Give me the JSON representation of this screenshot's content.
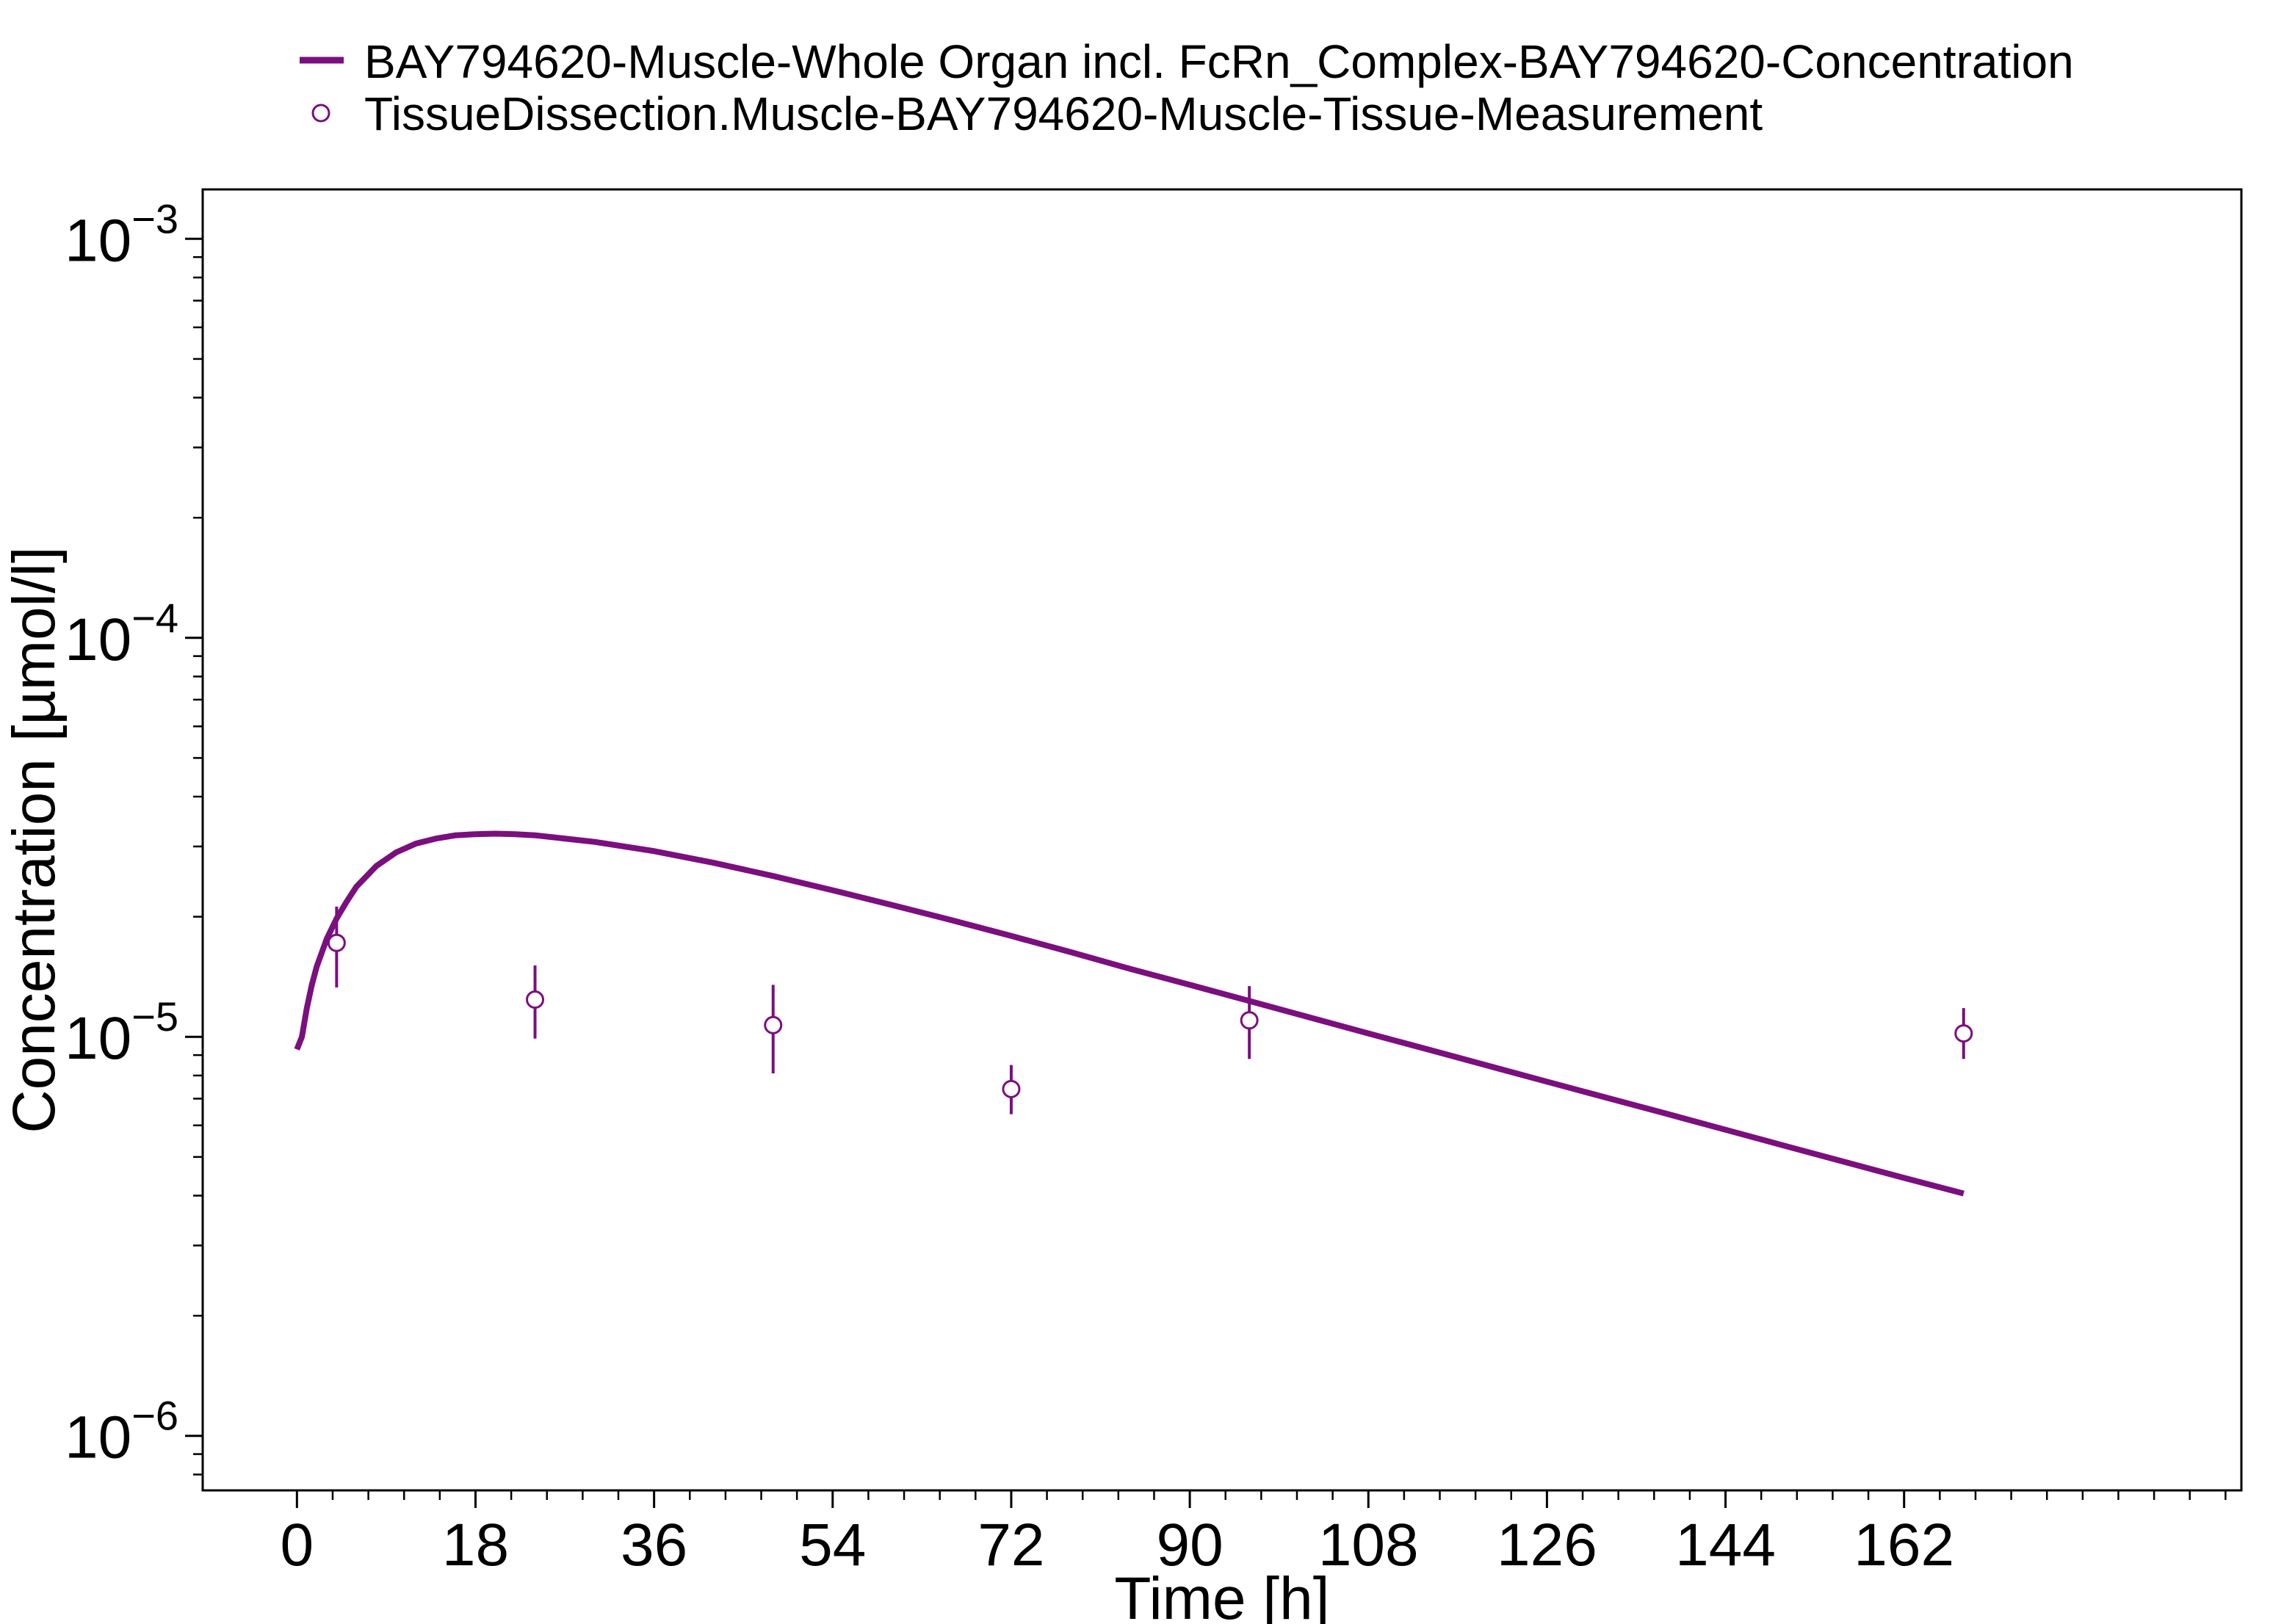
{
  "chart_data": {
    "type": "line",
    "title": "",
    "xlabel": "Time [h]",
    "ylabel": "Concentration [µmol/l]",
    "xlim": [
      -9.5,
      196
    ],
    "ylim": [
      7.3e-07,
      0.00133
    ],
    "yscale": "log",
    "grid": false,
    "legend_position": "top",
    "x_ticks": [
      0,
      18,
      36,
      54,
      72,
      90,
      108,
      126,
      144,
      162
    ],
    "x_tick_labels": [
      "0",
      "18",
      "36",
      "54",
      "72",
      "90",
      "108",
      "126",
      "144",
      "162"
    ],
    "y_ticks": [
      {
        "value": 1e-06,
        "base": "10",
        "exponent": "−6"
      },
      {
        "value": 1e-05,
        "base": "10",
        "exponent": "−5"
      },
      {
        "value": 0.0001,
        "base": "10",
        "exponent": "−4"
      },
      {
        "value": 0.001,
        "base": "10",
        "exponent": "−3"
      }
    ],
    "series": [
      {
        "name": "BAY794620-Muscle-Whole Organ incl. FcRn_Complex-BAY794620-Concentration",
        "kind": "line",
        "color": "#7b0f7e",
        "x": [
          0,
          0.5,
          1,
          1.5,
          2,
          3,
          4,
          5,
          6,
          8,
          10,
          12,
          14,
          16,
          18,
          20,
          22,
          24,
          30,
          36,
          42,
          48,
          54,
          60,
          66,
          72,
          78,
          84,
          90,
          96,
          102,
          108,
          114,
          120,
          126,
          132,
          138,
          144,
          150,
          156,
          162,
          168
        ],
        "y": [
          9.3e-06,
          1e-05,
          1.18e-05,
          1.35e-05,
          1.5e-05,
          1.76e-05,
          1.98e-05,
          2.18e-05,
          2.38e-05,
          2.68e-05,
          2.9e-05,
          3.05e-05,
          3.14e-05,
          3.2e-05,
          3.22e-05,
          3.23e-05,
          3.22e-05,
          3.2e-05,
          3.08e-05,
          2.92e-05,
          2.73e-05,
          2.53e-05,
          2.33e-05,
          2.14e-05,
          1.96e-05,
          1.79e-05,
          1.63e-05,
          1.48e-05,
          1.35e-05,
          1.23e-05,
          1.12e-05,
          1.02e-05,
          9.3e-06,
          8.47e-06,
          7.72e-06,
          7.04e-06,
          6.42e-06,
          5.85e-06,
          5.33e-06,
          4.86e-06,
          4.43e-06,
          4.05e-06
        ]
      },
      {
        "name": "TissueDissection.Muscle-BAY794620-Muscle-Tissue-Measurement",
        "kind": "scatter",
        "color": "#7b0f7e",
        "points": [
          {
            "x": 4,
            "y": 1.72e-05,
            "y_low": 1.33e-05,
            "y_high": 2.12e-05
          },
          {
            "x": 24,
            "y": 1.24e-05,
            "y_low": 9.9e-06,
            "y_high": 1.51e-05
          },
          {
            "x": 48,
            "y": 1.07e-05,
            "y_low": 8.1e-06,
            "y_high": 1.35e-05
          },
          {
            "x": 72,
            "y": 7.4e-06,
            "y_low": 6.4e-06,
            "y_high": 8.5e-06
          },
          {
            "x": 96,
            "y": 1.1e-05,
            "y_low": 8.8e-06,
            "y_high": 1.34e-05
          },
          {
            "x": 168,
            "y": 1.02e-05,
            "y_low": 8.8e-06,
            "y_high": 1.18e-05
          }
        ]
      }
    ]
  }
}
